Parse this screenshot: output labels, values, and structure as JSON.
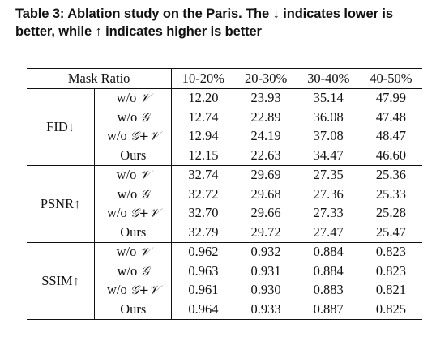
{
  "caption": {
    "line1": "Table 3: Ablation study on the Paris. The ↓ indicates lower is",
    "line2": "better, while ↑ indicates higher is better"
  },
  "header": {
    "mask_ratio": "Mask Ratio",
    "ratios": [
      "10-20%",
      "20-30%",
      "30-40%",
      "40-50%"
    ]
  },
  "variant_prefix": "w/o",
  "groups": [
    {
      "metric": "FID↓",
      "rows": [
        {
          "variant": "𝒱",
          "values": [
            "12.20",
            "23.93",
            "35.14",
            "47.99"
          ]
        },
        {
          "variant": "𝒢",
          "values": [
            "12.74",
            "22.89",
            "36.08",
            "47.48"
          ]
        },
        {
          "variant": "𝒢+𝒱",
          "values": [
            "12.94",
            "24.19",
            "37.08",
            "48.47"
          ]
        },
        {
          "variant": "Ours",
          "values": [
            "12.15",
            "22.63",
            "34.47",
            "46.60"
          ]
        }
      ]
    },
    {
      "metric": "PSNR↑",
      "rows": [
        {
          "variant": "𝒱",
          "values": [
            "32.74",
            "29.69",
            "27.35",
            "25.36"
          ]
        },
        {
          "variant": "𝒢",
          "values": [
            "32.72",
            "29.68",
            "27.36",
            "25.33"
          ]
        },
        {
          "variant": "𝒢+𝒱",
          "values": [
            "32.70",
            "29.66",
            "27.33",
            "25.28"
          ]
        },
        {
          "variant": "Ours",
          "values": [
            "32.79",
            "29.72",
            "27.47",
            "25.47"
          ]
        }
      ]
    },
    {
      "metric": "SSIM↑",
      "rows": [
        {
          "variant": "𝒱",
          "values": [
            "0.962",
            "0.932",
            "0.884",
            "0.823"
          ]
        },
        {
          "variant": "𝒢",
          "values": [
            "0.963",
            "0.931",
            "0.884",
            "0.823"
          ]
        },
        {
          "variant": "𝒢+𝒱",
          "values": [
            "0.961",
            "0.930",
            "0.883",
            "0.821"
          ]
        },
        {
          "variant": "Ours",
          "values": [
            "0.964",
            "0.933",
            "0.887",
            "0.825"
          ]
        }
      ]
    }
  ]
}
